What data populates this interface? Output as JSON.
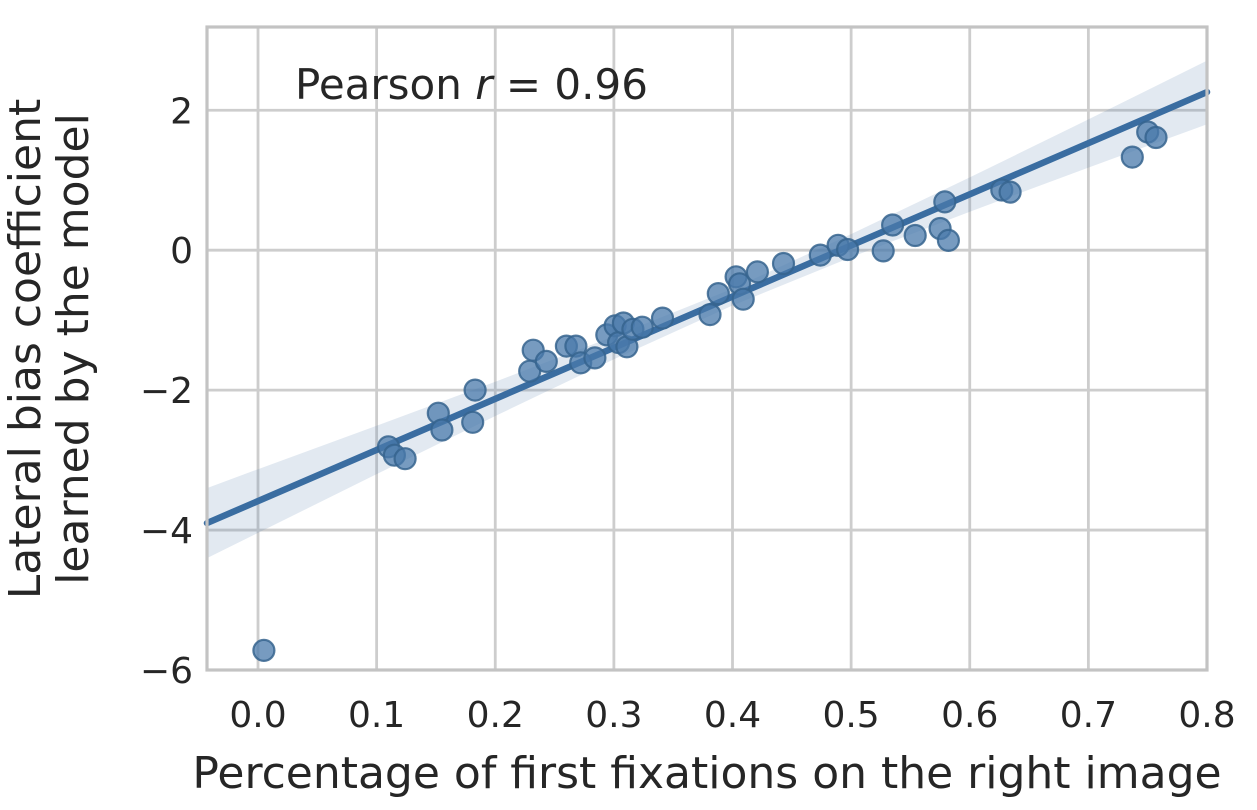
{
  "chart_data": {
    "type": "scatter",
    "title": "",
    "annotation": {
      "prefix": "Pearson ",
      "variable": "r",
      "suffix": " = 0.96"
    },
    "annotation_text": "Pearson r = 0.96",
    "pearson_r": 0.96,
    "xlabel": "Percentage of first fixations on the right image",
    "ylabel": "Lateral bias coefficient learned by the model",
    "ylabel_lines": [
      "Lateral bias coefficient",
      "learned by the model"
    ],
    "xlim": [
      -0.043,
      0.8
    ],
    "ylim": [
      -6,
      3.19
    ],
    "xticks": [
      0.0,
      0.1,
      0.2,
      0.3,
      0.4,
      0.5,
      0.6,
      0.7,
      0.8
    ],
    "xtick_labels": [
      "0.0",
      "0.1",
      "0.2",
      "0.3",
      "0.4",
      "0.5",
      "0.6",
      "0.7",
      "0.8"
    ],
    "yticks": [
      -6,
      -4,
      -2,
      0,
      2
    ],
    "ytick_labels": [
      "−6",
      "−4",
      "−2",
      "0",
      "2"
    ],
    "grid": true,
    "legend": null,
    "points": [
      [
        0.005,
        -5.72
      ],
      [
        0.11,
        -2.81
      ],
      [
        0.115,
        -2.93
      ],
      [
        0.124,
        -2.98
      ],
      [
        0.152,
        -2.33
      ],
      [
        0.155,
        -2.57
      ],
      [
        0.181,
        -2.46
      ],
      [
        0.183,
        -2.0
      ],
      [
        0.229,
        -1.73
      ],
      [
        0.232,
        -1.43
      ],
      [
        0.243,
        -1.59
      ],
      [
        0.26,
        -1.37
      ],
      [
        0.268,
        -1.37
      ],
      [
        0.272,
        -1.61
      ],
      [
        0.284,
        -1.54
      ],
      [
        0.294,
        -1.21
      ],
      [
        0.301,
        -1.08
      ],
      [
        0.304,
        -1.32
      ],
      [
        0.308,
        -1.04
      ],
      [
        0.311,
        -1.38
      ],
      [
        0.316,
        -1.13
      ],
      [
        0.324,
        -1.1
      ],
      [
        0.341,
        -0.97
      ],
      [
        0.381,
        -0.92
      ],
      [
        0.388,
        -0.62
      ],
      [
        0.403,
        -0.38
      ],
      [
        0.406,
        -0.48
      ],
      [
        0.409,
        -0.7
      ],
      [
        0.421,
        -0.31
      ],
      [
        0.443,
        -0.19
      ],
      [
        0.474,
        -0.07
      ],
      [
        0.489,
        0.07
      ],
      [
        0.497,
        0.01
      ],
      [
        0.527,
        -0.01
      ],
      [
        0.535,
        0.36
      ],
      [
        0.554,
        0.21
      ],
      [
        0.575,
        0.31
      ],
      [
        0.579,
        0.69
      ],
      [
        0.582,
        0.14
      ],
      [
        0.627,
        0.86
      ],
      [
        0.634,
        0.83
      ],
      [
        0.737,
        1.33
      ],
      [
        0.75,
        1.69
      ],
      [
        0.757,
        1.61
      ]
    ],
    "regression_line": {
      "x1": -0.043,
      "y1": -3.9,
      "x2": 0.8,
      "y2": 2.26
    },
    "confidence_band": [
      {
        "x": -0.043,
        "lo": -4.4,
        "hi": -3.4
      },
      {
        "x": 0.0,
        "lo": -4.04,
        "hi": -3.13
      },
      {
        "x": 0.1,
        "lo": -3.2,
        "hi": -2.51
      },
      {
        "x": 0.2,
        "lo": -2.37,
        "hi": -1.88
      },
      {
        "x": 0.3,
        "lo": -1.56,
        "hi": -1.23
      },
      {
        "x": 0.4,
        "lo": -0.79,
        "hi": -0.55
      },
      {
        "x": 0.5,
        "lo": -0.1,
        "hi": 0.23
      },
      {
        "x": 0.6,
        "lo": 0.55,
        "hi": 1.04
      },
      {
        "x": 0.7,
        "lo": 1.18,
        "hi": 1.87
      },
      {
        "x": 0.8,
        "lo": 1.8,
        "hi": 2.71
      }
    ],
    "colors": {
      "point_fill": "#4a79ab",
      "point_edge": "#36648e",
      "line": "#3a6da1",
      "band": "#4a79ab",
      "grid": "#cdcdcd",
      "spine": "#c3c3c3",
      "text": "#262626",
      "background": "#ffffff"
    }
  }
}
